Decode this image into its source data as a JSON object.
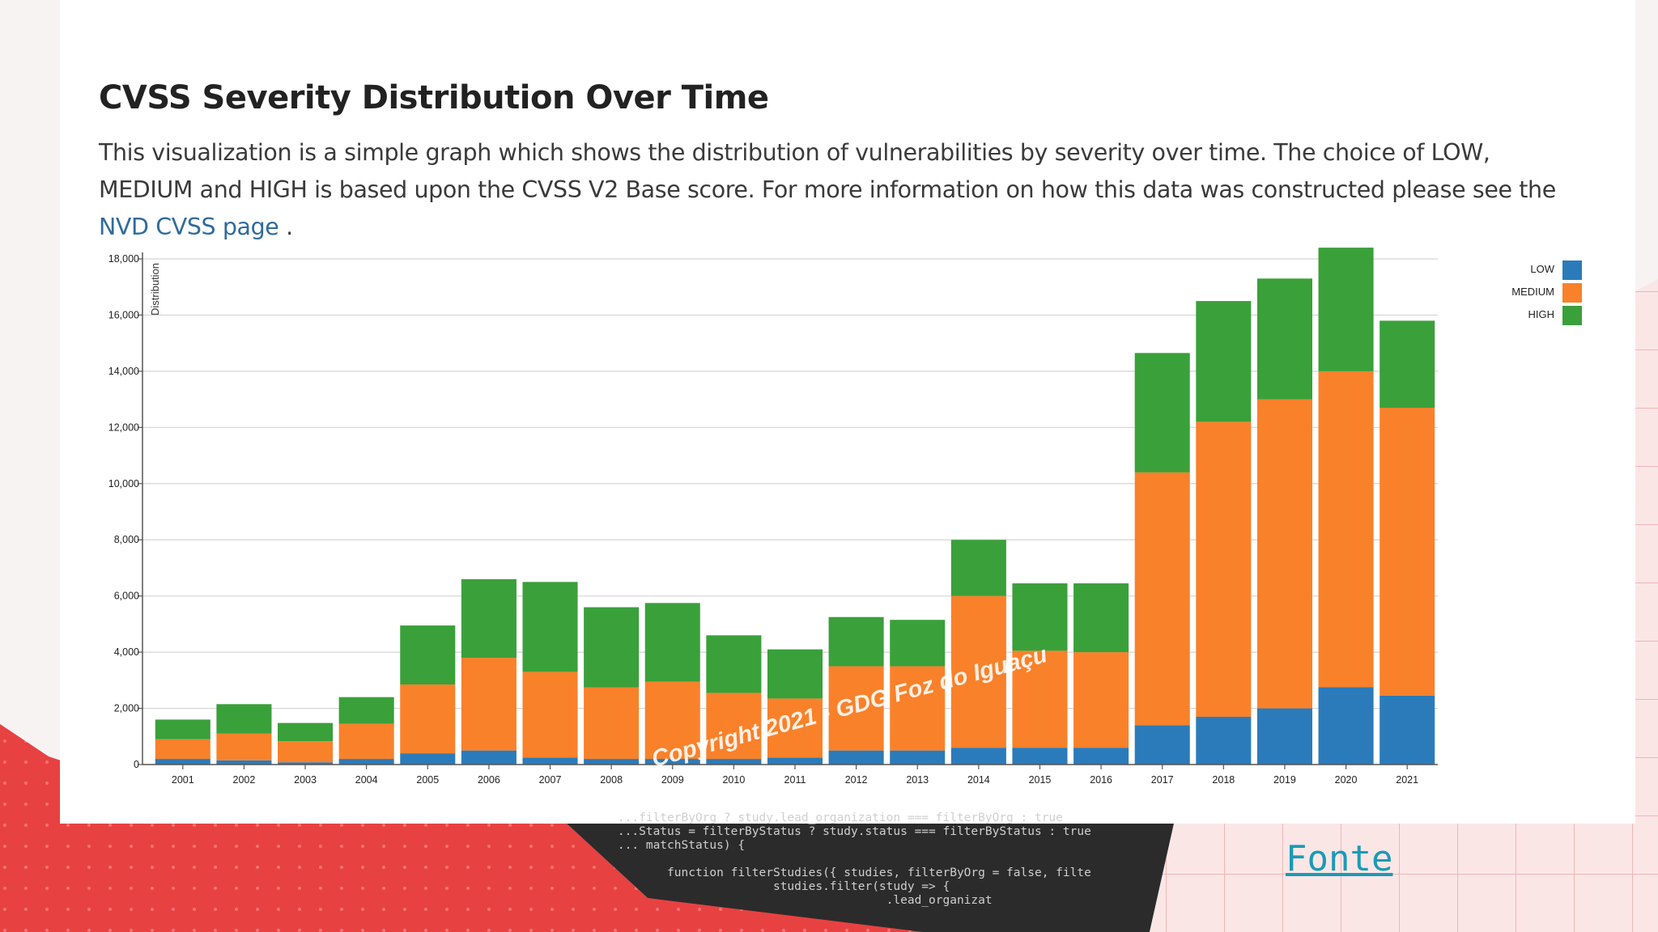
{
  "page": {
    "title": "CVSS Severity Distribution Over Time",
    "description_before_link": "This visualization is a simple graph which shows the distribution of vulnerabilities by severity over time. The choice of LOW, MEDIUM and HIGH is based upon the CVSS V2 Base score. For more information on how this data was constructed please see the ",
    "link_text": "NVD CVSS page",
    "description_after_link": " .",
    "watermark": "Copyright 2021 - GDG Foz do Iguaçu",
    "source_link": "Fonte",
    "code_snippet": "    ...filterByOrg ? study.lead_organization === filterByOrg : true\n    ...Status = filterByStatus ? study.status === filterByStatus : true\n    ... matchStatus) {\n\n           function filterStudies({ studies, filterByOrg = false, filte\n                          studies.filter(study => {\n                                          .lead_organizat"
  },
  "colors": {
    "low": "#2b7bba",
    "medium": "#f9812a",
    "high": "#3aa03a",
    "grid": "#d4d4d4",
    "axis": "#555555",
    "background_red": "#e84141",
    "code_bg": "#2b2b2b"
  },
  "chart_data": {
    "type": "bar",
    "stacked": true,
    "title": "",
    "xlabel": "",
    "ylabel": "Distribution",
    "ylim": [
      0,
      18000
    ],
    "yticks": [
      0,
      2000,
      4000,
      6000,
      8000,
      10000,
      12000,
      14000,
      16000,
      18000
    ],
    "ytick_labels": [
      "0",
      "2,000",
      "4,000",
      "6,000",
      "8,000",
      "10,000",
      "12,000",
      "14,000",
      "16,000",
      "18,000"
    ],
    "grid": true,
    "legend_position": "top-right",
    "categories": [
      "2001",
      "2002",
      "2003",
      "2004",
      "2005",
      "2006",
      "2007",
      "2008",
      "2009",
      "2010",
      "2011",
      "2012",
      "2013",
      "2014",
      "2015",
      "2016",
      "2017",
      "2018",
      "2019",
      "2020",
      "2021"
    ],
    "series": [
      {
        "name": "LOW",
        "values": [
          200,
          150,
          80,
          200,
          400,
          500,
          250,
          200,
          200,
          200,
          250,
          500,
          500,
          600,
          600,
          600,
          1400,
          1700,
          2000,
          2750,
          2450
        ]
      },
      {
        "name": "MEDIUM",
        "values": [
          700,
          950,
          750,
          1250,
          2450,
          3300,
          3050,
          2550,
          2750,
          2350,
          2100,
          3000,
          3000,
          5400,
          3450,
          3400,
          9000,
          10500,
          11000,
          11250,
          10250
        ]
      },
      {
        "name": "HIGH",
        "values": [
          700,
          1050,
          650,
          950,
          2100,
          2800,
          3200,
          2850,
          2800,
          2050,
          1750,
          1750,
          1650,
          2000,
          2400,
          2450,
          4250,
          4300,
          4300,
          4400,
          3100
        ]
      }
    ]
  }
}
